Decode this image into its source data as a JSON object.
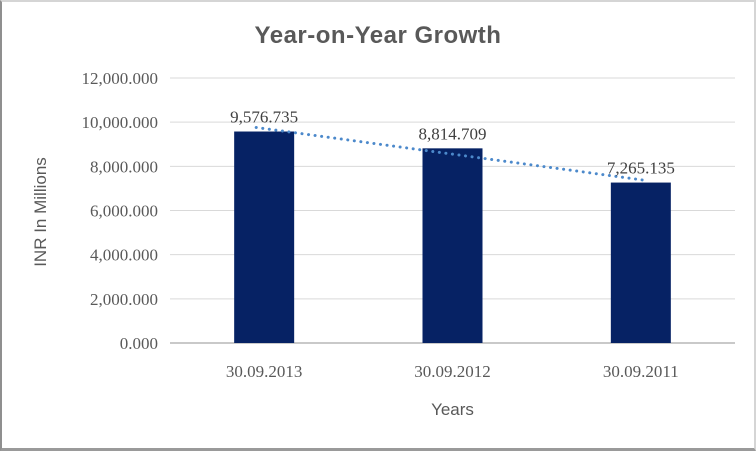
{
  "chart_data": {
    "type": "bar",
    "title": "Year-on-Year Growth",
    "categories": [
      "30.09.2013",
      "30.09.2012",
      "30.09.2011"
    ],
    "values": [
      9576.735,
      8814.709,
      7265.135
    ],
    "data_labels": [
      "9,576.735",
      "8,814.709",
      "7,265.135"
    ],
    "xlabel": "Years",
    "ylabel": "INR In Millions",
    "ylim": [
      0,
      12000
    ],
    "ytick_step": 2000,
    "ytick_labels": [
      "0.000",
      "2,000.000",
      "4,000.000",
      "6,000.000",
      "8,000.000",
      "10,000.000",
      "12,000.000"
    ],
    "grid": true,
    "legend": "none",
    "trendline": {
      "type": "linear",
      "style": "dotted"
    },
    "colors": {
      "bar": "#062264",
      "trendline": "#4c89cb",
      "gridline": "#d9d9d9",
      "axis_line": "#b7b7b7",
      "tick_text": "#595959",
      "data_label_text": "#3f3f3f",
      "title_text": "#595959"
    }
  }
}
